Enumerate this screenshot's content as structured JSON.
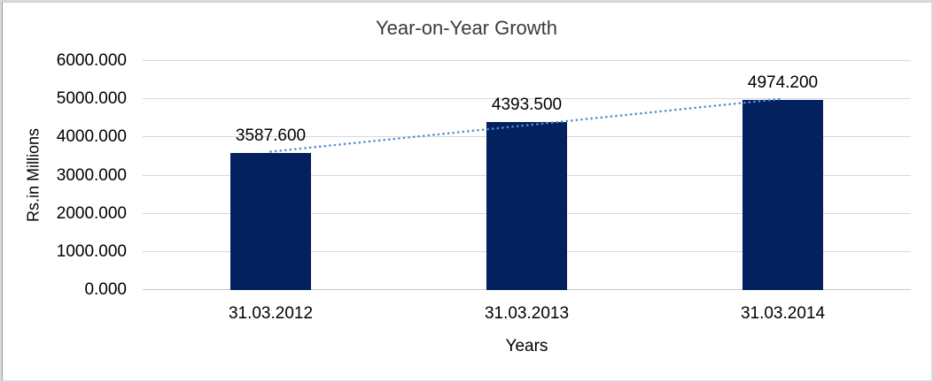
{
  "chart_data": {
    "type": "bar",
    "title": "Year-on-Year Growth",
    "xlabel": "Years",
    "ylabel": "Rs.in Millions",
    "categories": [
      "31.03.2012",
      "31.03.2013",
      "31.03.2014"
    ],
    "values": [
      3587.6,
      4393.5,
      4974.2
    ],
    "value_labels": [
      "3587.600",
      "4393.500",
      "4974.200"
    ],
    "ylim": [
      0,
      6000
    ],
    "y_tick_step": 1000,
    "y_tick_labels": [
      "0.000",
      "1000.000",
      "2000.000",
      "3000.000",
      "4000.000",
      "5000.000",
      "6000.000"
    ],
    "grid": true,
    "legend": "none",
    "trendline": {
      "type": "linear",
      "style": "dotted"
    },
    "colors": {
      "bar": "#03215f",
      "gridline": "#d9d9d9",
      "axis_line": "#c8c8c8",
      "trendline": "#4f8fd0",
      "text": "#000000",
      "title": "#3b3b3b",
      "frame_border": "#d9d9d9",
      "background": "#ffffff"
    }
  }
}
